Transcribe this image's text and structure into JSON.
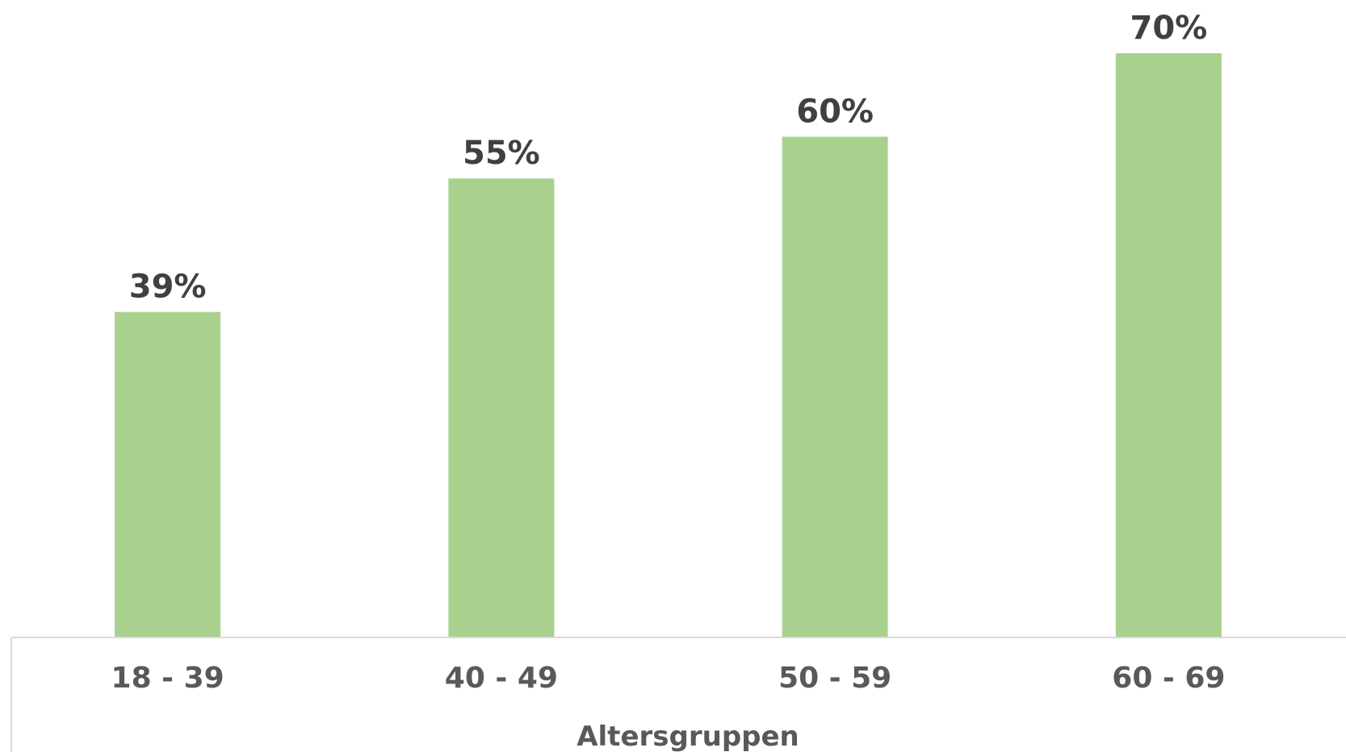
{
  "chart_data": {
    "type": "bar",
    "categories": [
      "18 - 39",
      "40 - 49",
      "50 - 59",
      "60 - 69"
    ],
    "values": [
      39,
      55,
      60,
      70
    ],
    "data_labels": [
      "39%",
      "55%",
      "60%",
      "70%"
    ],
    "unit": "%",
    "xlabel": "Altersgruppen",
    "ylabel": "",
    "ylim": [
      0,
      70
    ],
    "grid": false,
    "legend": "none",
    "bar_color": "#a9d18e",
    "label_color": "#404040",
    "tick_color": "#595959"
  }
}
